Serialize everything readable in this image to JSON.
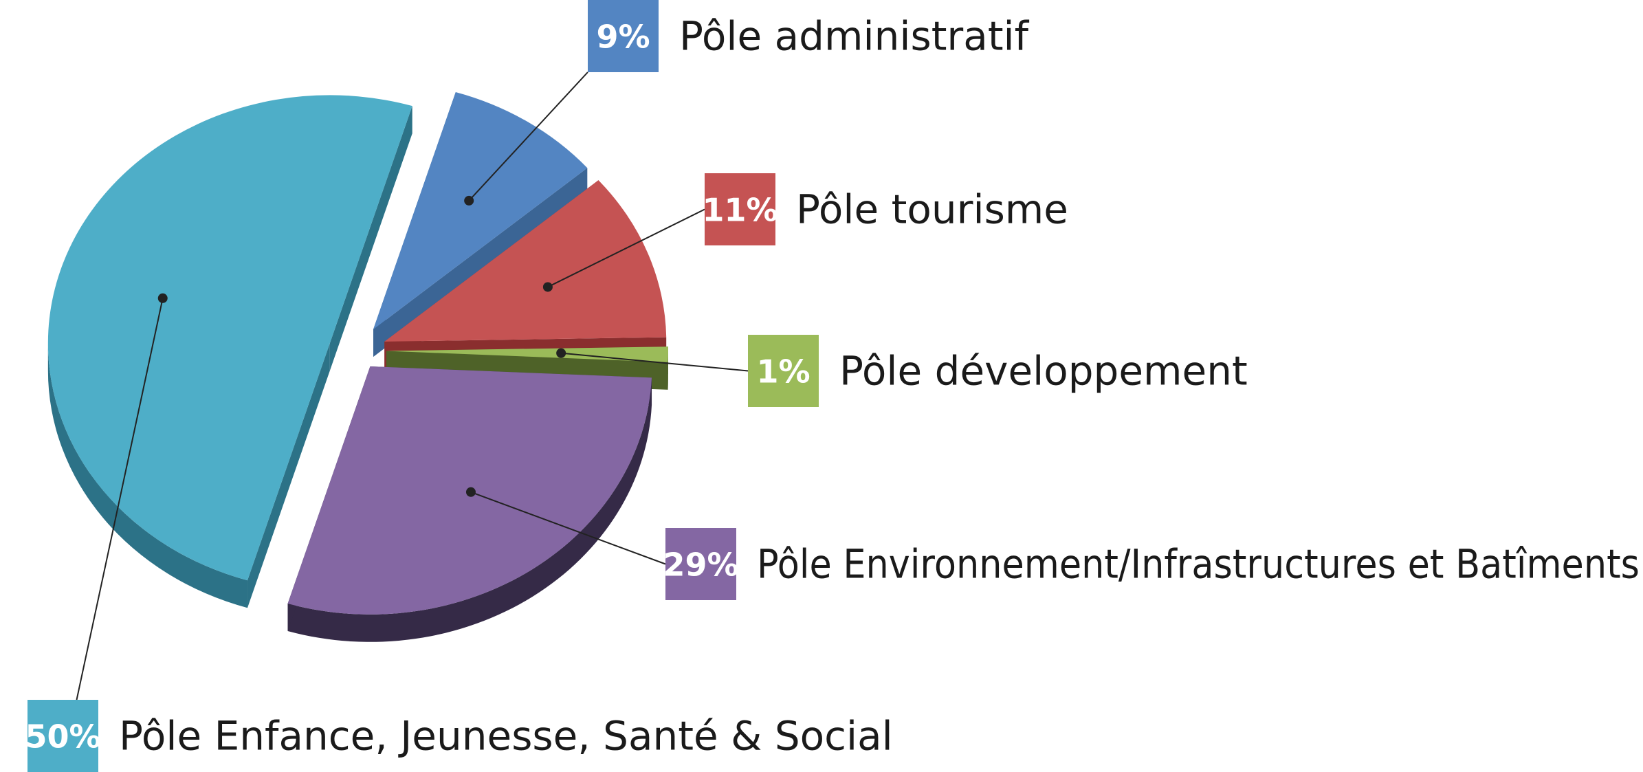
{
  "chart_data": {
    "type": "pie",
    "style": "3d-exploded",
    "slices": [
      {
        "label": "Pôle administratif",
        "value": 9,
        "value_label": "9%",
        "color": "#5385c2",
        "side_color": "#3b6595"
      },
      {
        "label": "Pôle tourisme",
        "value": 11,
        "value_label": "11%",
        "color": "#c55353",
        "side_color": "#8a2e2e"
      },
      {
        "label": "Pôle développement",
        "value": 1,
        "value_label": "1%",
        "color": "#9bbb59",
        "side_color": "#4e6228"
      },
      {
        "label": "Pôle Environnement/Infrastructures et Batîments",
        "value": 29,
        "value_label": "29%",
        "color": "#8467a3",
        "side_color": "#352a47"
      },
      {
        "label": "Pôle Enfance, Jeunesse, Santé & Social",
        "value": 50,
        "value_label": "50%",
        "color": "#4eaec8",
        "side_color": "#2c7287"
      }
    ],
    "legend": "callout-labels"
  }
}
